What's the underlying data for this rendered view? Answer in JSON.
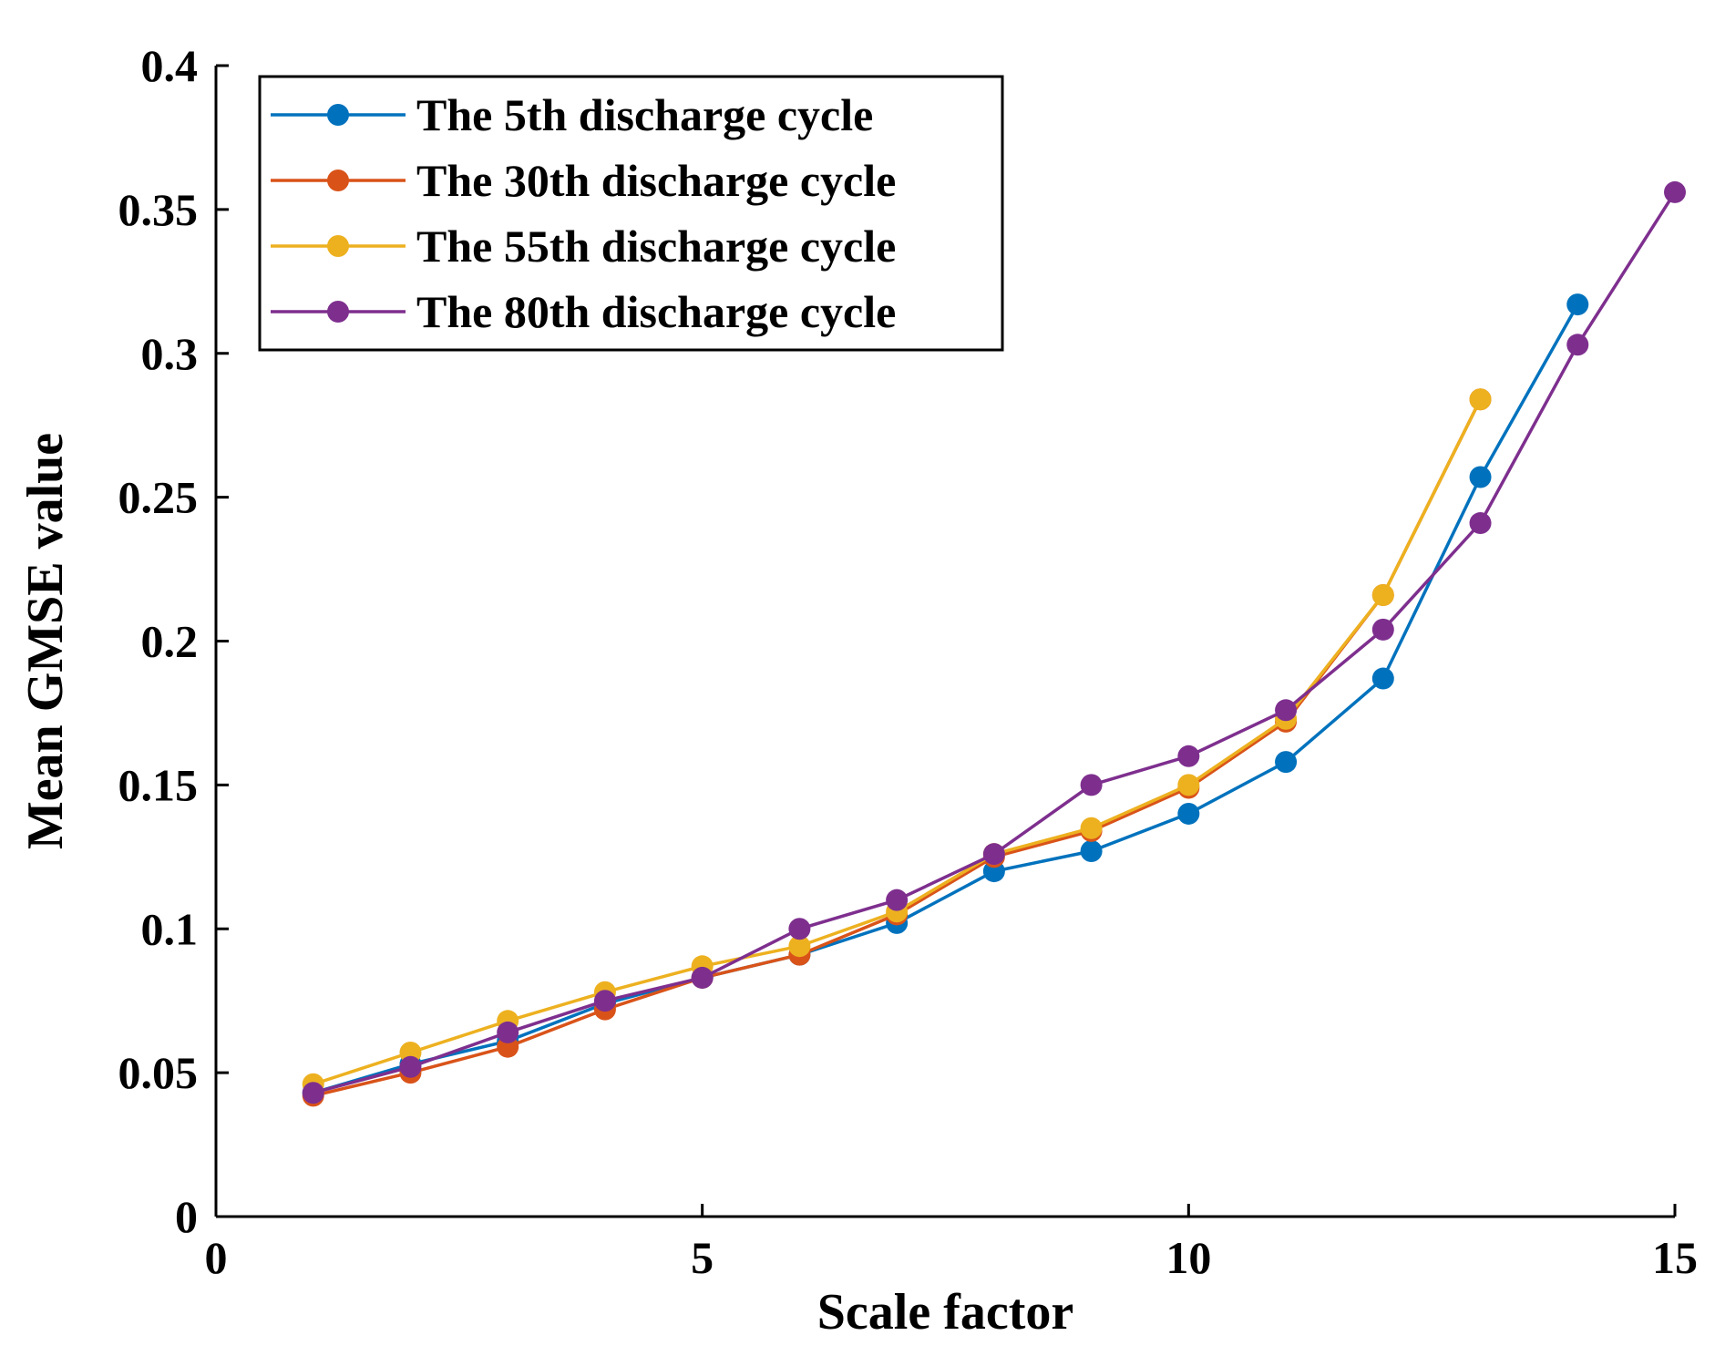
{
  "chart_data": {
    "type": "line",
    "title": "",
    "xlabel": "Scale factor",
    "ylabel": "Mean GMSE value",
    "xlim": [
      0,
      15
    ],
    "ylim": [
      0,
      0.4
    ],
    "xticks": [
      0,
      5,
      10,
      15
    ],
    "xtick_labels": [
      "0",
      "5",
      "10",
      "15"
    ],
    "yticks": [
      0,
      0.05,
      0.1,
      0.15,
      0.2,
      0.25,
      0.3,
      0.35,
      0.4
    ],
    "ytick_labels": [
      "0",
      "0.05",
      "0.1",
      "0.15",
      "0.2",
      "0.25",
      "0.3",
      "0.35",
      "0.4"
    ],
    "grid": false,
    "legend_position": "top-left",
    "series": [
      {
        "name": "The 5th discharge cycle",
        "color": "#0072BD",
        "x": [
          1,
          2,
          3,
          4,
          5,
          6,
          7,
          8,
          9,
          10,
          11,
          12,
          13,
          14
        ],
        "values": [
          0.043,
          0.053,
          0.061,
          0.074,
          0.083,
          0.091,
          0.102,
          0.12,
          0.127,
          0.14,
          0.158,
          0.187,
          0.257,
          0.317
        ]
      },
      {
        "name": "The 30th discharge cycle",
        "color": "#D95319",
        "x": [
          1,
          2,
          3,
          4,
          5,
          6,
          7,
          8,
          9,
          10,
          11,
          12,
          13
        ],
        "values": [
          0.042,
          0.05,
          0.059,
          0.072,
          0.083,
          0.091,
          0.105,
          0.125,
          0.134,
          0.149,
          0.172,
          0.216,
          0.284
        ]
      },
      {
        "name": "The 55th discharge cycle",
        "color": "#EDB120",
        "x": [
          1,
          2,
          3,
          4,
          5,
          6,
          7,
          8,
          9,
          10,
          11,
          12,
          13
        ],
        "values": [
          0.046,
          0.057,
          0.068,
          0.078,
          0.087,
          0.094,
          0.106,
          0.126,
          0.135,
          0.15,
          0.173,
          0.216,
          0.284
        ]
      },
      {
        "name": "The 80th discharge cycle",
        "color": "#7E2F8E",
        "x": [
          1,
          2,
          3,
          4,
          5,
          6,
          7,
          8,
          9,
          10,
          11,
          12,
          13,
          14,
          15
        ],
        "values": [
          0.043,
          0.052,
          0.064,
          0.075,
          0.083,
          0.1,
          0.11,
          0.126,
          0.15,
          0.16,
          0.176,
          0.204,
          0.241,
          0.303,
          0.356
        ]
      }
    ]
  }
}
